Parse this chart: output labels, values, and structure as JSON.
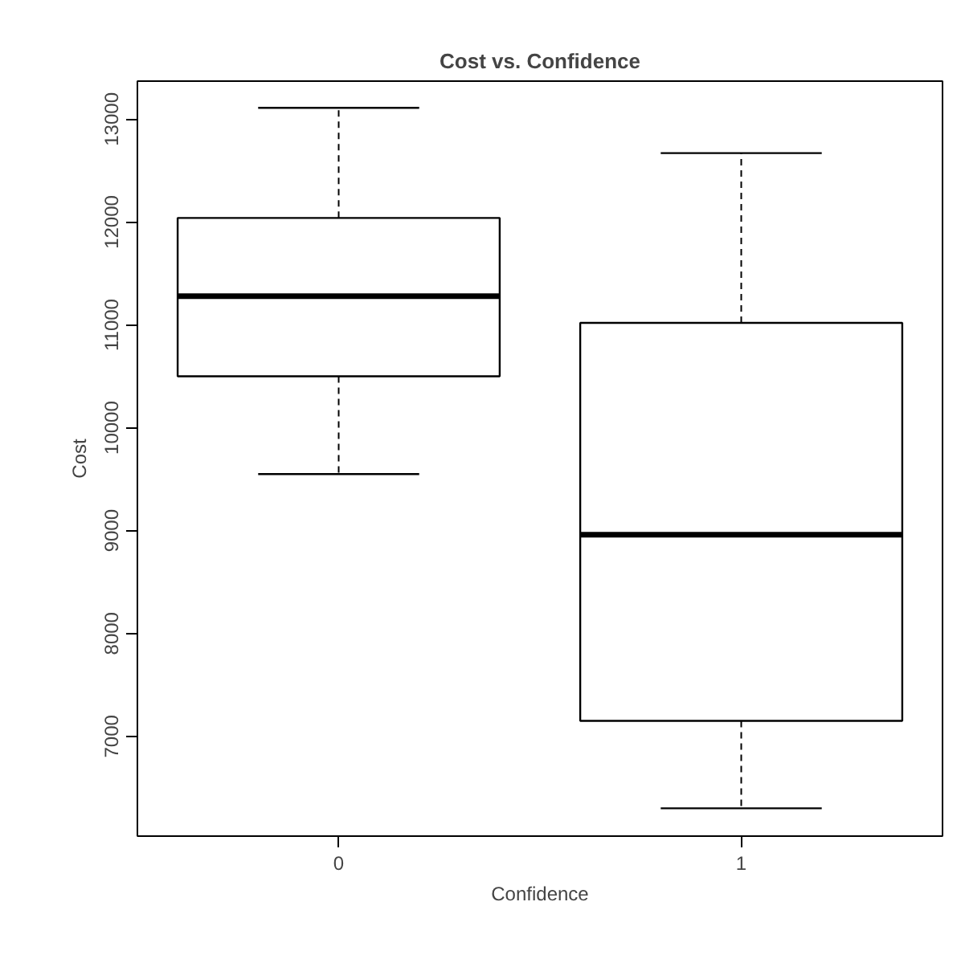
{
  "chart_data": {
    "type": "box",
    "title": "Cost vs. Confidence",
    "xlabel": "Confidence",
    "ylabel": "Cost",
    "categories": [
      "0",
      "1"
    ],
    "boxes": [
      {
        "low": 9550,
        "q1": 10500,
        "median": 11280,
        "q3": 12040,
        "high": 13110
      },
      {
        "low": 6300,
        "q1": 7150,
        "median": 8960,
        "q3": 11020,
        "high": 12670
      }
    ],
    "ylim": [
      6030,
      13370
    ],
    "yticks": [
      7000,
      8000,
      9000,
      10000,
      11000,
      12000,
      13000
    ],
    "grid": false
  }
}
